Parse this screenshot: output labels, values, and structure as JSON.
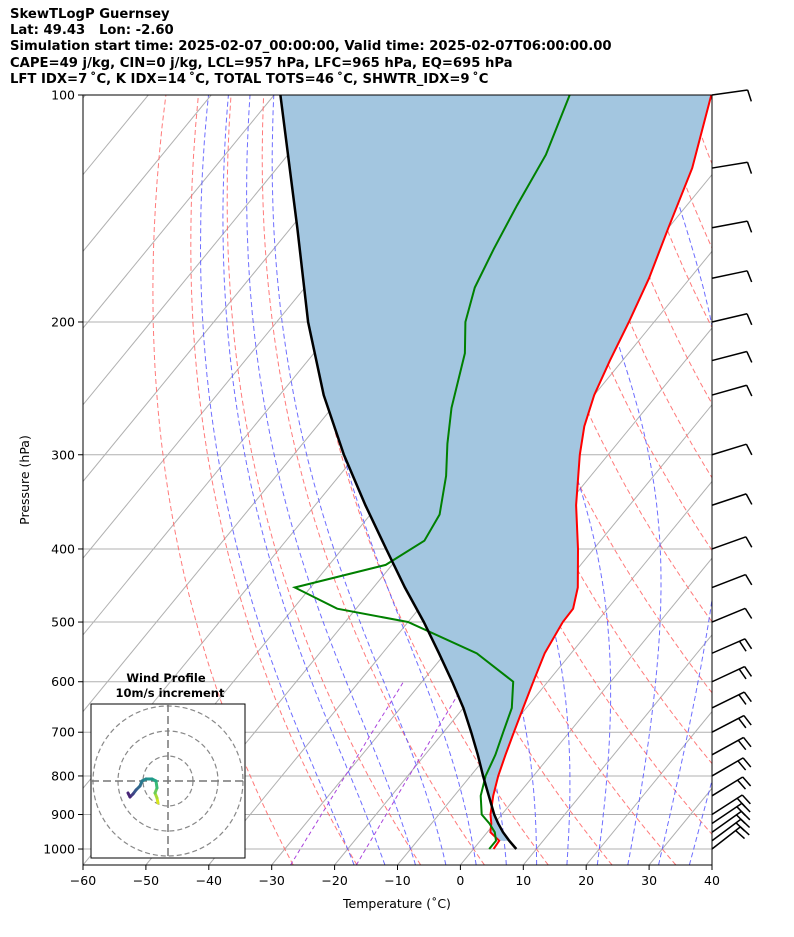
{
  "header": {
    "line1": "SkewTLogP Guernsey",
    "line2": "Lat: 49.43   Lon: -2.60",
    "line3": "Simulation start time: 2025-02-07_00:00:00, Valid time: 2025-02-07T06:00:00.00",
    "line4": "CAPE=49 j/kg, CIN=0 j/kg, LCL=957 hPa, LFC=965 hPa, EQ=695 hPa",
    "line5": "LFT IDX=7 ˚C, K IDX=14 ˚C, TOTAL TOTS=46 ˚C, SHWTR_IDX=9 ˚C"
  },
  "colors": {
    "temperature": "#ff0000",
    "dewpoint": "#008000",
    "parcel": "#000000",
    "cape_fill": "#a3c6e0",
    "dry_adiabat": "#ff6b6b",
    "moist_adiabat": "#5555ff",
    "mixing_ratio": "#aa44dd",
    "isotherm": "#b0b0b0"
  },
  "inset": {
    "title": "Wind Profile",
    "subtitle": "10m/s increment"
  },
  "chart_data": {
    "type": "line",
    "xlabel": "Temperature (˚C)",
    "ylabel": "Pressure (hPa)",
    "xlim": [
      -60,
      40
    ],
    "ylim": [
      1050,
      100
    ],
    "y_scale": "log",
    "grid": true,
    "x_ticks": [
      -60,
      -50,
      -40,
      -30,
      -20,
      -10,
      0,
      10,
      20,
      30,
      40
    ],
    "x_tick_labels": [
      "−60",
      "−50",
      "−40",
      "−30",
      "−20",
      "−10",
      "0",
      "10",
      "20",
      "30",
      "40"
    ],
    "y_ticks": [
      1000,
      900,
      800,
      700,
      600,
      500,
      400,
      300,
      200,
      100
    ],
    "series": [
      {
        "role": "temperature",
        "points": [
          [
            1000,
            3.2
          ],
          [
            975,
            3.0
          ],
          [
            950,
            0.5
          ],
          [
            925,
            -0.5
          ],
          [
            900,
            -1.8
          ],
          [
            850,
            -3.8
          ],
          [
            800,
            -5.6
          ],
          [
            750,
            -7.2
          ],
          [
            700,
            -8.8
          ],
          [
            650,
            -10.5
          ],
          [
            600,
            -12.3
          ],
          [
            550,
            -14.2
          ],
          [
            500,
            -15.4
          ],
          [
            480,
            -15.5
          ],
          [
            450,
            -17.5
          ],
          [
            400,
            -22.5
          ],
          [
            350,
            -28.5
          ],
          [
            300,
            -34.5
          ],
          [
            275,
            -37.5
          ],
          [
            250,
            -40
          ],
          [
            225,
            -42
          ],
          [
            200,
            -44
          ],
          [
            175,
            -46.5
          ],
          [
            150,
            -50
          ],
          [
            125,
            -54
          ],
          [
            100,
            -60.5
          ]
        ]
      },
      {
        "role": "dewpoint",
        "points": [
          [
            1000,
            2.5
          ],
          [
            975,
            2.5
          ],
          [
            950,
            1.2
          ],
          [
            925,
            -0.8
          ],
          [
            900,
            -3.2
          ],
          [
            850,
            -5.8
          ],
          [
            800,
            -7.6
          ],
          [
            750,
            -8.8
          ],
          [
            700,
            -10.5
          ],
          [
            650,
            -12.3
          ],
          [
            600,
            -15.5
          ],
          [
            550,
            -25
          ],
          [
            500,
            -40
          ],
          [
            480,
            -53
          ],
          [
            450,
            -62.5
          ],
          [
            420,
            -51
          ],
          [
            390,
            -48
          ],
          [
            360,
            -49
          ],
          [
            320,
            -53
          ],
          [
            290,
            -57
          ],
          [
            260,
            -61
          ],
          [
            220,
            -66
          ],
          [
            200,
            -70
          ],
          [
            180,
            -73
          ],
          [
            160,
            -75
          ],
          [
            140,
            -77
          ],
          [
            120,
            -79
          ],
          [
            100,
            -83
          ]
        ]
      },
      {
        "role": "parcel",
        "points": [
          [
            1000,
            6.8
          ],
          [
            975,
            4.6
          ],
          [
            950,
            2.5
          ],
          [
            925,
            0.6
          ],
          [
            900,
            -1.2
          ],
          [
            850,
            -4.5
          ],
          [
            800,
            -8
          ],
          [
            750,
            -11.6
          ],
          [
            700,
            -15.6
          ],
          [
            650,
            -20
          ],
          [
            600,
            -25.2
          ],
          [
            550,
            -31
          ],
          [
            500,
            -37.5
          ],
          [
            450,
            -45
          ],
          [
            400,
            -53
          ],
          [
            350,
            -62
          ],
          [
            300,
            -72
          ],
          [
            250,
            -83
          ],
          [
            200,
            -95
          ],
          [
            150,
            -109
          ],
          [
            100,
            -129
          ]
        ]
      }
    ],
    "wind_barbs_hpa": [
      1000,
      975,
      950,
      925,
      900,
      850,
      800,
      750,
      700,
      650,
      600,
      550,
      500,
      450,
      400,
      350,
      300,
      250,
      225,
      200,
      175,
      150,
      125,
      100
    ],
    "wind_profile_rings": 3
  }
}
